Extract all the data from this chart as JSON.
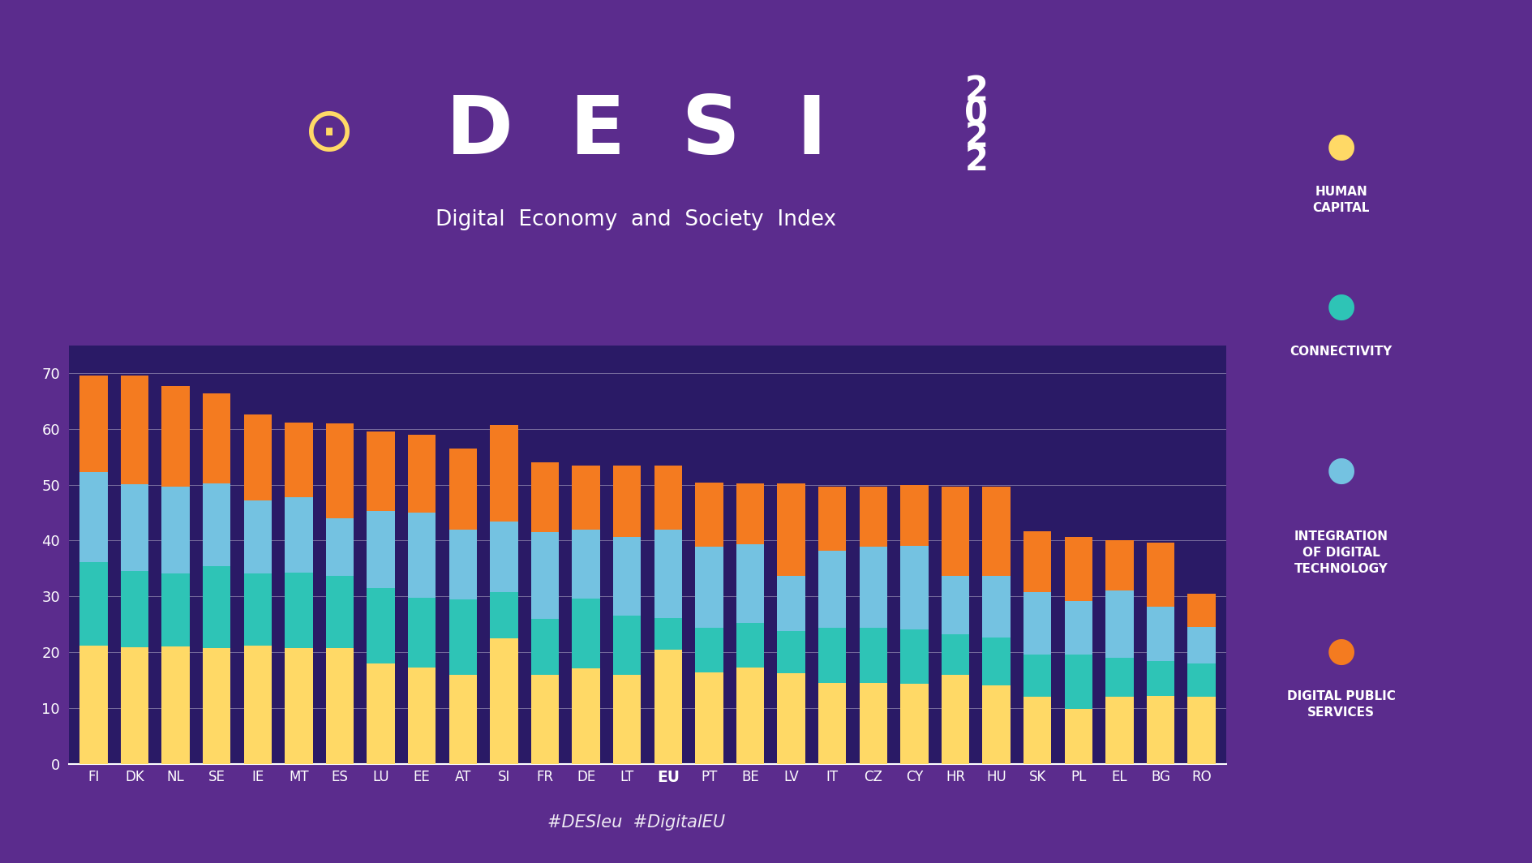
{
  "countries": [
    "FI",
    "DK",
    "NL",
    "SE",
    "IE",
    "MT",
    "ES",
    "LU",
    "EE",
    "AT",
    "SI",
    "FR",
    "DE",
    "LT",
    "EU",
    "PT",
    "BE",
    "LV",
    "IT",
    "CZ",
    "CY",
    "HR",
    "HU",
    "SK",
    "PL",
    "EL",
    "BG",
    "RO"
  ],
  "human_capital": [
    21.1,
    20.9,
    21.0,
    20.8,
    21.2,
    20.7,
    20.8,
    18.0,
    17.2,
    16.0,
    22.5,
    16.0,
    17.1,
    16.0,
    20.4,
    16.4,
    17.3,
    16.2,
    14.5,
    14.5,
    14.3,
    16.0,
    14.1,
    12.0,
    9.8,
    12.0,
    12.2,
    12.0
  ],
  "connectivity": [
    15.1,
    13.7,
    13.1,
    14.6,
    12.9,
    13.5,
    12.8,
    13.5,
    12.5,
    13.4,
    8.2,
    10.0,
    12.5,
    10.5,
    5.7,
    8.0,
    8.0,
    7.6,
    9.8,
    9.8,
    9.8,
    7.2,
    8.5,
    7.5,
    9.8,
    7.0,
    6.2,
    6.0
  ],
  "integration_digital": [
    16.1,
    15.5,
    15.6,
    14.9,
    13.1,
    13.5,
    10.4,
    13.8,
    15.3,
    12.6,
    12.7,
    15.5,
    12.4,
    14.1,
    15.9,
    14.5,
    14.0,
    9.9,
    13.9,
    14.6,
    14.9,
    10.5,
    11.0,
    11.2,
    9.5,
    12.0,
    9.7,
    6.5
  ],
  "digital_public_services": [
    17.3,
    19.4,
    18.0,
    16.1,
    15.4,
    13.5,
    17.0,
    14.2,
    14.0,
    14.5,
    17.3,
    12.5,
    11.5,
    12.9,
    11.5,
    11.5,
    11.0,
    16.5,
    11.4,
    10.7,
    11.0,
    16.0,
    16.0,
    11.0,
    11.5,
    9.0,
    11.5,
    5.9
  ],
  "col_hc": "#FFD966",
  "col_conn": "#2EC4B6",
  "col_intg": "#74C2E1",
  "col_dps": "#F47B20",
  "bg": "#5B2C8D",
  "chart_bg": "#2A1A66",
  "yticks": [
    0,
    10,
    20,
    30,
    40,
    50,
    60,
    70
  ],
  "hashtag": "#DESIeu  #DigitalEU",
  "leg_labels": [
    "HUMAN\nCAPITAL",
    "CONNECTIVITY",
    "INTEGRATION\nOF DIGITAL\nTECHNOLOGY",
    "DIGITAL PUBLIC\nSERVICES"
  ],
  "leg_colors": [
    "#FFD966",
    "#2EC4B6",
    "#74C2E1",
    "#F47B20"
  ],
  "title_main": "D  E  S  I",
  "subtitle": "Digital  Economy  and  Society  Index",
  "year_digits": [
    "2",
    "0",
    "2",
    "2"
  ]
}
